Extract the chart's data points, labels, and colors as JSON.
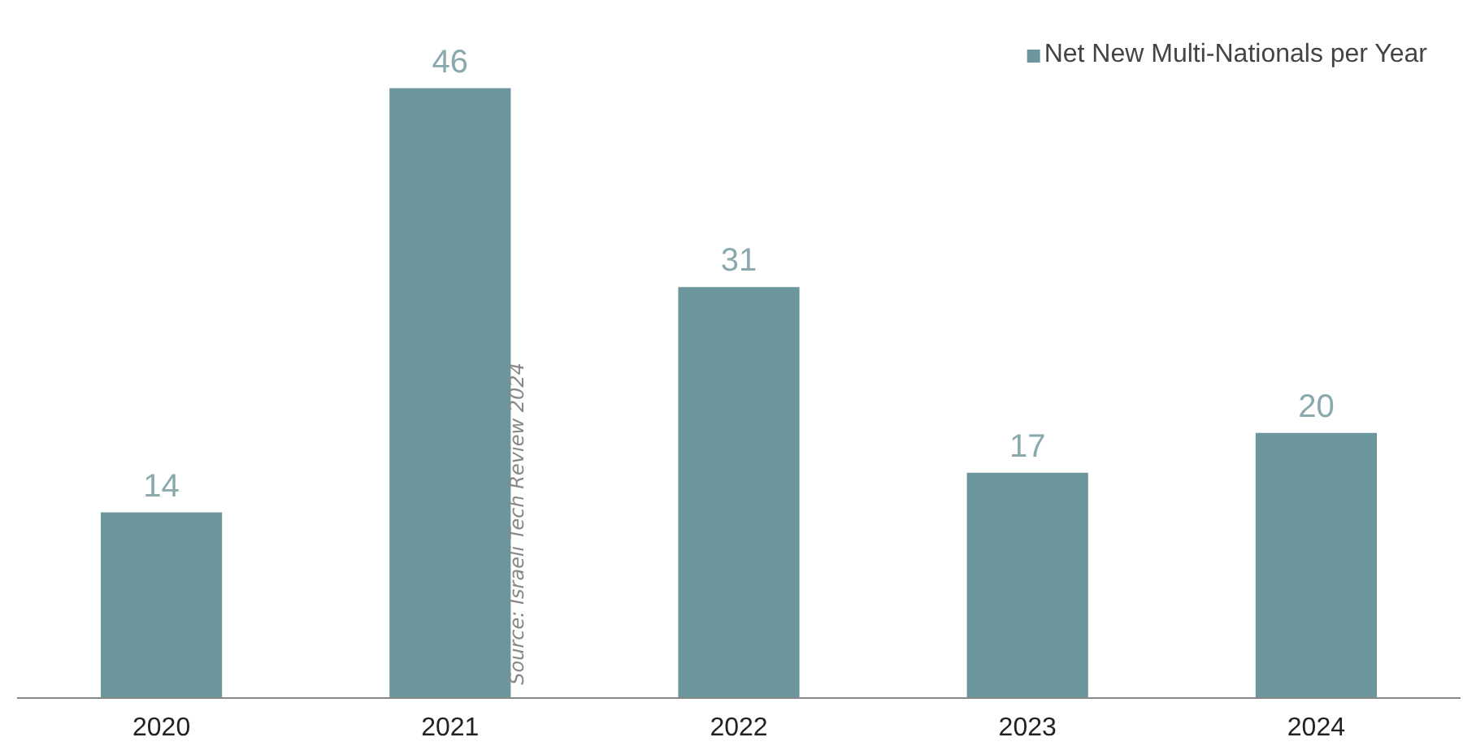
{
  "chart_data": {
    "type": "bar",
    "categories": [
      "2020",
      "2021",
      "2022",
      "2023",
      "2024"
    ],
    "series": [
      {
        "name": "Net New Multi-Nationals per Year",
        "color": "#6b979c",
        "values": [
          14,
          46,
          31,
          17,
          20
        ]
      }
    ],
    "data_labels": true,
    "legend": "top right",
    "grid": false,
    "tick_labels": "x",
    "annotations": [
      "Source: Israeli Tech Review 2024"
    ]
  }
}
